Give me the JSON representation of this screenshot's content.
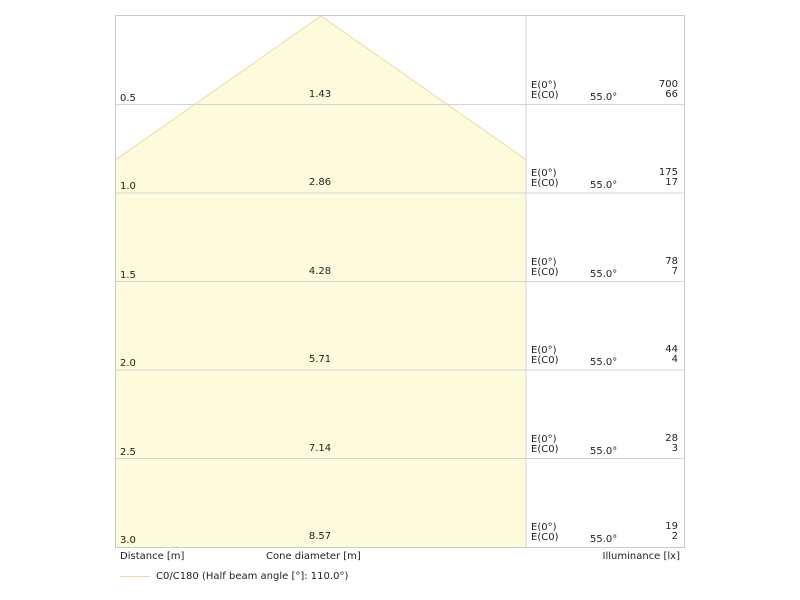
{
  "chart_data": {
    "type": "table",
    "title": "",
    "rows": [
      {
        "distance": "0.5",
        "diameter": "1.43",
        "e0_label": "E(0°)",
        "ec0_label": "E(C0)",
        "angle": "55.0°",
        "e0": "700",
        "ec0": "66"
      },
      {
        "distance": "1.0",
        "diameter": "2.86",
        "e0_label": "E(0°)",
        "ec0_label": "E(C0)",
        "angle": "55.0°",
        "e0": "175",
        "ec0": "17"
      },
      {
        "distance": "1.5",
        "diameter": "4.28",
        "e0_label": "E(0°)",
        "ec0_label": "E(C0)",
        "angle": "55.0°",
        "e0": "78",
        "ec0": "7"
      },
      {
        "distance": "2.0",
        "diameter": "5.71",
        "e0_label": "E(0°)",
        "ec0_label": "E(C0)",
        "angle": "55.0°",
        "e0": "44",
        "ec0": "4"
      },
      {
        "distance": "2.5",
        "diameter": "7.14",
        "e0_label": "E(0°)",
        "ec0_label": "E(C0)",
        "angle": "55.0°",
        "e0": "28",
        "ec0": "3"
      },
      {
        "distance": "3.0",
        "diameter": "8.57",
        "e0_label": "E(0°)",
        "ec0_label": "E(C0)",
        "angle": "55.0°",
        "e0": "19",
        "ec0": "2"
      }
    ],
    "half_beam_angle_deg": 55.0,
    "max_distance_m": 3.0
  },
  "labels": {
    "distance": "Distance [m]",
    "cone_diameter": "Cone diameter [m]",
    "illuminance": "Illuminance [lx]",
    "legend": "C0/C180 (Half beam angle [°]: 110.0°)"
  },
  "colors": {
    "cone_fill": "#fdfbdc",
    "cone_line": "#f2d7a6",
    "grid": "#d4d4d4"
  }
}
